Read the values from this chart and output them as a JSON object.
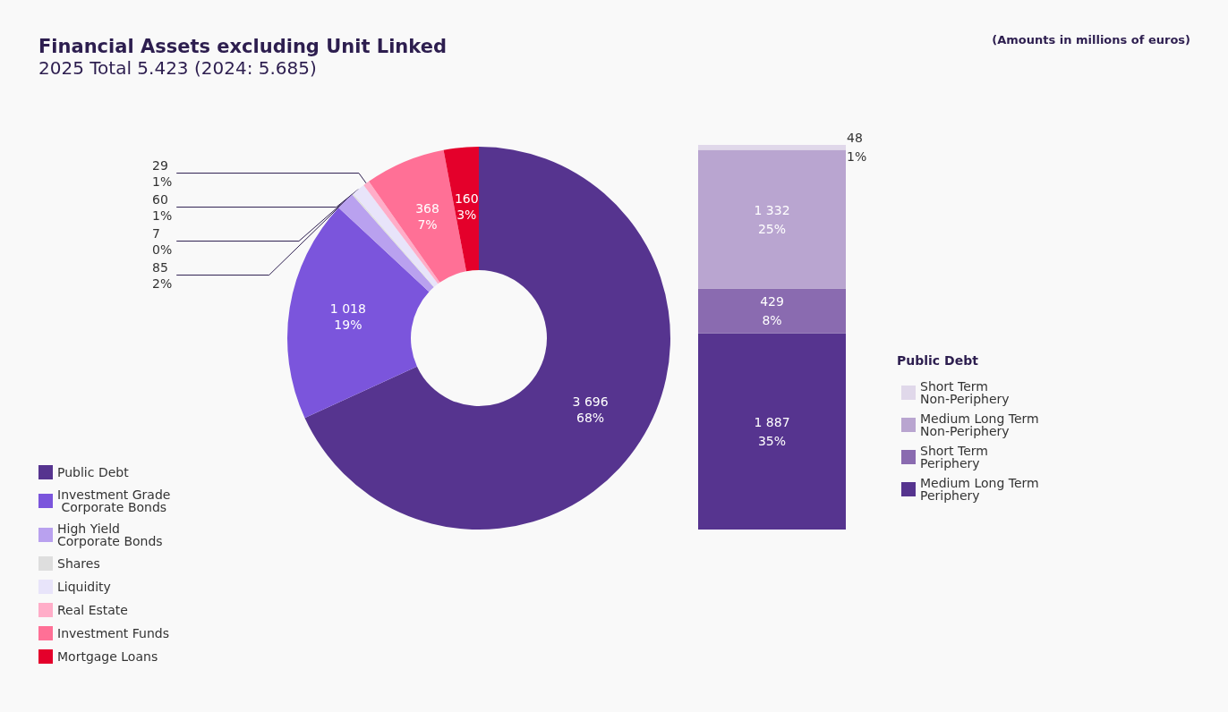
{
  "chart_data": [
    {
      "type": "donut",
      "title": "Financial Assets excluding Unit Linked",
      "subtitle": "2025 Total 5.423 (2024: 5.685)",
      "annotations": [
        "(Amounts in millions of euros)"
      ],
      "categories": [
        "Public Debt",
        "Investment Grade Corporate Bonds",
        "High Yield Corporate Bonds",
        "Shares",
        "Liquidity",
        "Real Estate",
        "Investment Funds",
        "Mortgage Loans"
      ],
      "values": [
        3696,
        1018,
        85,
        7,
        60,
        29,
        368,
        160
      ],
      "value_labels": [
        "3 696\n68%",
        "1 018\n19%",
        "85\n2%",
        "7\n0%",
        "60\n1%",
        "29\n1%",
        "368\n7%",
        "160\n3%"
      ],
      "colors": [
        "#56348f",
        "#7b55dc",
        "#b9a1ef",
        "#dedede",
        "#e8e4fa",
        "#ffadc8",
        "#ff7096",
        "#e4002b"
      ],
      "legend": "bottom left"
    },
    {
      "type": "bar",
      "stacked": true,
      "legend_title": "Public Debt",
      "categories": [
        null
      ],
      "legend": "right",
      "series": [
        {
          "name": "Medium Long Term Periphery",
          "color": "#56348f",
          "values": [
            1887
          ],
          "value_labels": [
            "1 887\n35%"
          ]
        },
        {
          "name": "Short Term Periphery",
          "color": "#8a6bb0",
          "values": [
            429
          ],
          "value_labels": [
            "429\n8%"
          ]
        },
        {
          "name": "Medium Long Term Non-Periphery",
          "color": "#b9a5d0",
          "values": [
            1332
          ],
          "value_labels": [
            "1 332\n25%"
          ]
        },
        {
          "name": "Short Term Non-Periphery",
          "color": "#e0d8ea",
          "values": [
            48
          ],
          "value_labels": [
            "48\n1%"
          ]
        }
      ]
    }
  ]
}
